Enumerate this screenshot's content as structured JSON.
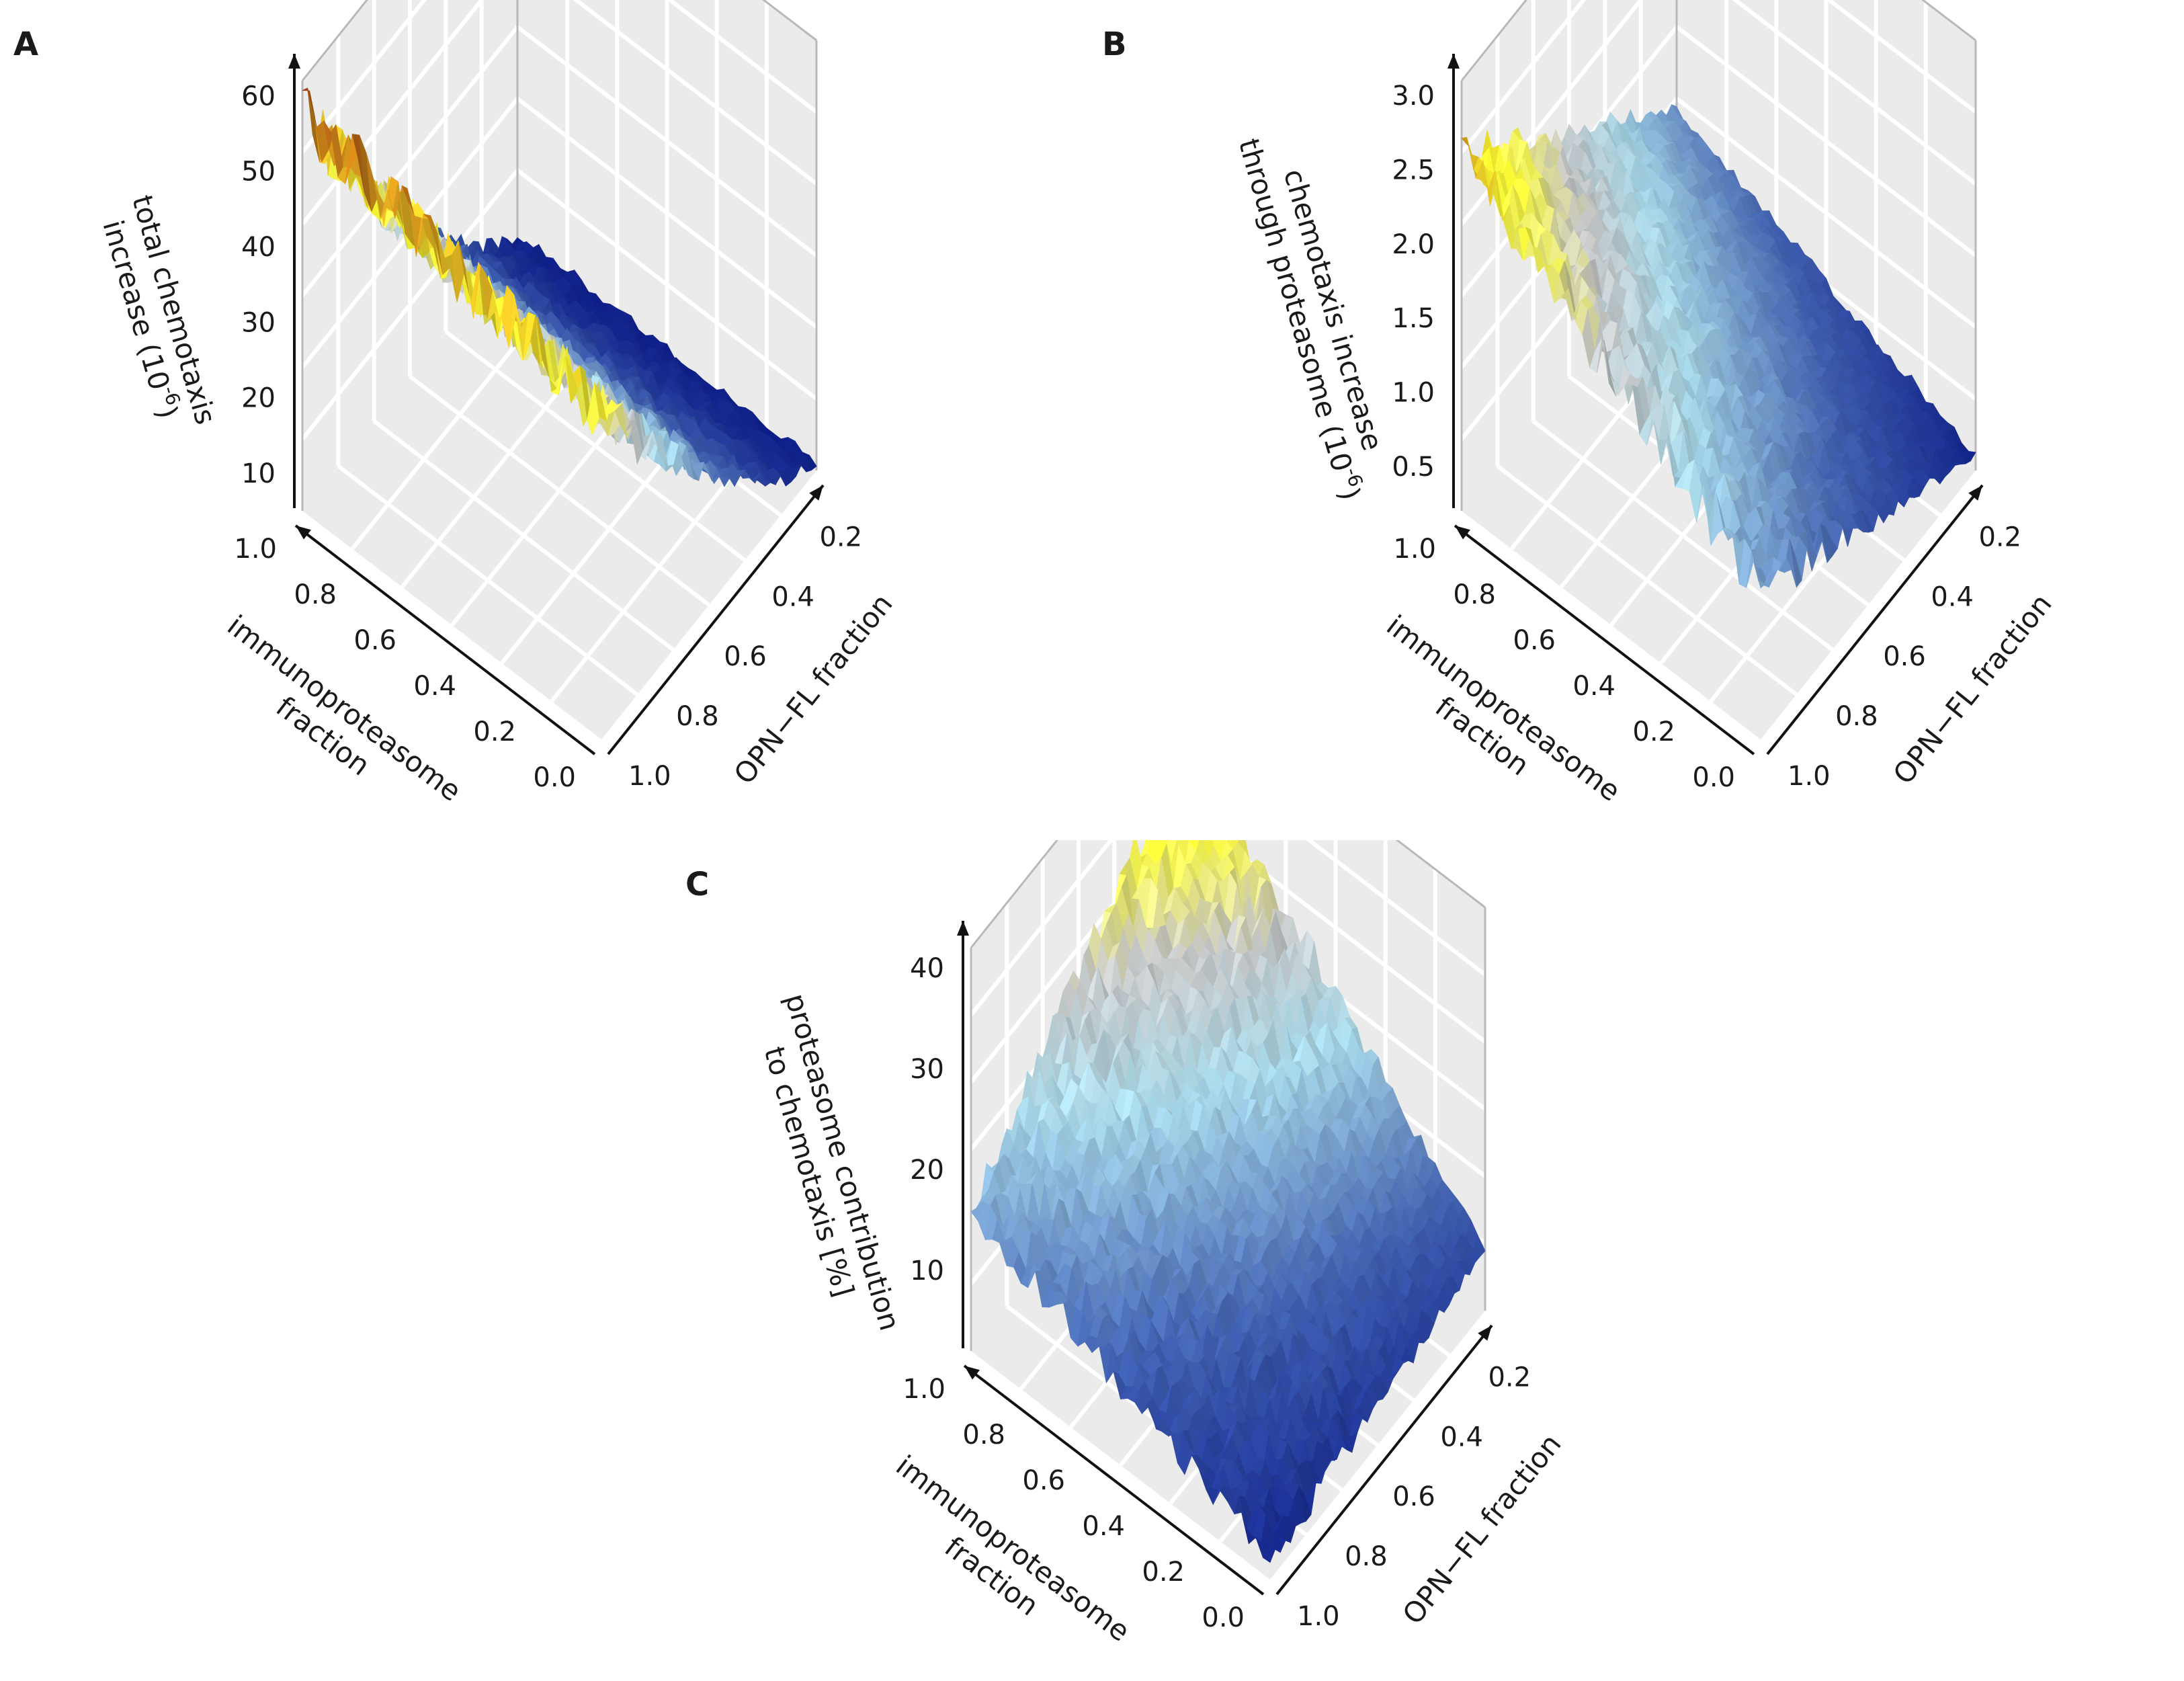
{
  "figure": {
    "panels": [
      {
        "id": "A",
        "label": "A",
        "z_title_lines": [
          "total chemotaxis",
          "increase (10",
          ")"
        ],
        "z_title_sup": "-6",
        "x_title_lines": [
          "immunoproteasome",
          "fraction"
        ],
        "y_title": "OPN−FL fraction"
      },
      {
        "id": "B",
        "label": "B",
        "z_title_lines": [
          "chemotaxis increase",
          "through proteasome (10",
          ")"
        ],
        "z_title_sup": "-6",
        "x_title_lines": [
          "immunoproteasome",
          "fraction"
        ],
        "y_title": "OPN−FL fraction"
      },
      {
        "id": "C",
        "label": "C",
        "z_title_lines": [
          "proteasome contribution",
          "to chemotaxis [%]"
        ],
        "z_title_sup": "",
        "x_title_lines": [
          "immunoproteasome",
          "fraction"
        ],
        "y_title": "OPN−FL fraction"
      }
    ],
    "colors": {
      "low": "#0b1a86",
      "mid_blue": "#4060b0",
      "light_blue": "#a8d8e8",
      "grey": "#c8c8c8",
      "yellow": "#ffff33",
      "orange": "#d48a1a",
      "high": "#9a2a10",
      "pane": "#ebebeb",
      "gridline": "#ffffff"
    }
  },
  "chart_data": [
    {
      "type": "surface3d",
      "panel": "A",
      "x": {
        "label": "immunoproteasome fraction",
        "ticks": [
          "0.0",
          "0.2",
          "0.4",
          "0.6",
          "0.8",
          "1.0"
        ],
        "range": [
          0,
          1
        ]
      },
      "y": {
        "label": "OPN−FL fraction",
        "ticks": [
          "0.2",
          "0.4",
          "0.6",
          "0.8",
          "1.0"
        ],
        "range": [
          0.1,
          1
        ]
      },
      "z": {
        "label": "total chemotaxis increase (10-6)",
        "ticks": [
          "10",
          "20",
          "30",
          "40",
          "50",
          "60"
        ],
        "range": [
          5,
          62
        ]
      },
      "model": "z increases roughly linearly with OPN-FL fraction (about 6 at 0.1 to about 50 at 1.0), nearly independent of immunoproteasome fraction; peaks of about 60 near immunoproteasome 1.0 and OPN-FL 1.0",
      "corner_values": {
        "x0_ymin": 6,
        "x1_ymin": 7,
        "x0_ymax": 48,
        "x1_ymax": 58
      },
      "noise": 3
    },
    {
      "type": "surface3d",
      "panel": "B",
      "x": {
        "label": "immunoproteasome fraction",
        "ticks": [
          "0.0",
          "0.2",
          "0.4",
          "0.6",
          "0.8",
          "1.0"
        ],
        "range": [
          0,
          1
        ]
      },
      "y": {
        "label": "OPN−FL fraction",
        "ticks": [
          "0.2",
          "0.4",
          "0.6",
          "0.8",
          "1.0"
        ],
        "range": [
          0.1,
          1
        ]
      },
      "z": {
        "label": "chemotaxis increase through proteasome (10-6)",
        "ticks": [
          "0.5",
          "1.0",
          "1.5",
          "2.0",
          "2.5",
          "3.0"
        ],
        "range": [
          0.2,
          3.1
        ]
      },
      "model": "z grows with both immunoproteasome and OPN-FL fraction: about 0.3 at (0, 0.1), about 1.1 at (1, 0.1), about 1.2 at (0, 1), about 2.6 at (1, 1); peak near 3.0",
      "corner_values": {
        "x0_ymin": 0.3,
        "x1_ymin": 1.1,
        "x0_ymax": 1.2,
        "x1_ymax": 2.6
      },
      "noise": 0.12
    },
    {
      "type": "surface3d",
      "panel": "C",
      "x": {
        "label": "immunoproteasome fraction",
        "ticks": [
          "0.0",
          "0.2",
          "0.4",
          "0.6",
          "0.8",
          "1.0"
        ],
        "range": [
          0,
          1
        ]
      },
      "y": {
        "label": "OPN−FL fraction",
        "ticks": [
          "0.2",
          "0.4",
          "0.6",
          "0.8",
          "1.0"
        ],
        "range": [
          0.1,
          1
        ]
      },
      "z": {
        "label": "proteasome contribution to chemotaxis [%]",
        "ticks": [
          "10",
          "20",
          "30",
          "40"
        ],
        "range": [
          2,
          42
        ]
      },
      "model": "z is highest at immunoproteasome 1.0 and low OPN-FL (about 36), decreasing toward low immunoproteasome and high OPN-FL (about 4)",
      "corner_values": {
        "x0_ymin": 8,
        "x1_ymin": 36,
        "x0_ymax": 4,
        "x1_ymax": 16
      },
      "noise": 1.6
    }
  ]
}
